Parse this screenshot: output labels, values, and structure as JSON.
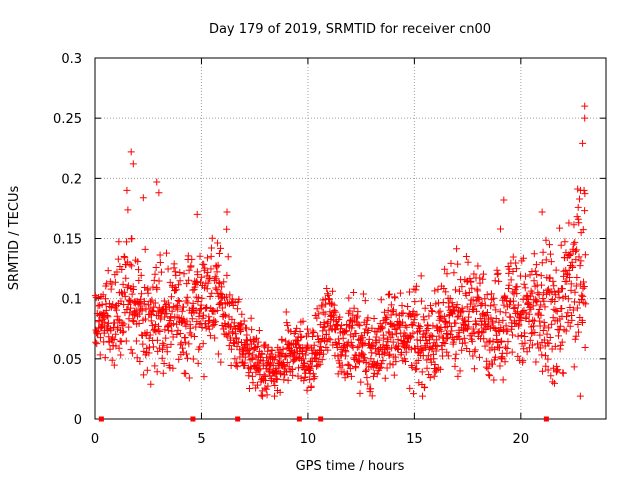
{
  "chart_data": {
    "type": "scatter",
    "title": "Day 179 of 2019, SRMTID for receiver cn00",
    "xlabel": "GPS time / hours",
    "ylabel": "SRMTID / TECUs",
    "xlim": [
      0,
      24
    ],
    "ylim": [
      0,
      0.3
    ],
    "x_ticks": [
      0,
      5,
      10,
      15,
      20
    ],
    "y_ticks": [
      0,
      0.05,
      0.1,
      0.15,
      0.2,
      0.25,
      0.3
    ],
    "x_tick_labels": [
      "0",
      "5",
      "10",
      "15",
      "20"
    ],
    "y_tick_labels": [
      "0",
      "0.05",
      "0.1",
      "0.15",
      "0.2",
      "0.25",
      "0.3"
    ],
    "grid": true,
    "marker": "+",
    "color": "#ff0000",
    "gap_markers_x": [
      0.3,
      4.6,
      6.7,
      9.6,
      10.6,
      21.2
    ],
    "outliers": [
      {
        "x": 1.5,
        "y": 0.19
      },
      {
        "x": 1.7,
        "y": 0.222
      },
      {
        "x": 1.8,
        "y": 0.212
      },
      {
        "x": 2.9,
        "y": 0.197
      },
      {
        "x": 3.0,
        "y": 0.188
      },
      {
        "x": 4.8,
        "y": 0.17
      },
      {
        "x": 6.2,
        "y": 0.172
      },
      {
        "x": 19.2,
        "y": 0.182
      },
      {
        "x": 21.0,
        "y": 0.172
      },
      {
        "x": 22.8,
        "y": 0.19
      },
      {
        "x": 22.9,
        "y": 0.229
      },
      {
        "x": 23.0,
        "y": 0.25
      },
      {
        "x": 23.0,
        "y": 0.26
      },
      {
        "x": 22.7,
        "y": 0.166
      }
    ],
    "trend": [
      {
        "x": 0.0,
        "y": 0.08
      },
      {
        "x": 0.5,
        "y": 0.082
      },
      {
        "x": 1.0,
        "y": 0.085
      },
      {
        "x": 1.5,
        "y": 0.095
      },
      {
        "x": 2.0,
        "y": 0.092
      },
      {
        "x": 2.5,
        "y": 0.08
      },
      {
        "x": 3.0,
        "y": 0.085
      },
      {
        "x": 3.5,
        "y": 0.085
      },
      {
        "x": 4.0,
        "y": 0.083
      },
      {
        "x": 4.5,
        "y": 0.09
      },
      {
        "x": 5.0,
        "y": 0.095
      },
      {
        "x": 5.5,
        "y": 0.1
      },
      {
        "x": 6.0,
        "y": 0.1
      },
      {
        "x": 6.5,
        "y": 0.075
      },
      {
        "x": 7.0,
        "y": 0.058
      },
      {
        "x": 7.5,
        "y": 0.048
      },
      {
        "x": 8.0,
        "y": 0.04
      },
      {
        "x": 8.5,
        "y": 0.038
      },
      {
        "x": 9.0,
        "y": 0.05
      },
      {
        "x": 9.5,
        "y": 0.06
      },
      {
        "x": 10.0,
        "y": 0.048
      },
      {
        "x": 10.5,
        "y": 0.058
      },
      {
        "x": 11.0,
        "y": 0.085
      },
      {
        "x": 11.5,
        "y": 0.065
      },
      {
        "x": 12.0,
        "y": 0.065
      },
      {
        "x": 12.5,
        "y": 0.06
      },
      {
        "x": 13.0,
        "y": 0.055
      },
      {
        "x": 13.5,
        "y": 0.062
      },
      {
        "x": 14.0,
        "y": 0.07
      },
      {
        "x": 14.5,
        "y": 0.072
      },
      {
        "x": 15.0,
        "y": 0.065
      },
      {
        "x": 15.5,
        "y": 0.062
      },
      {
        "x": 16.0,
        "y": 0.068
      },
      {
        "x": 16.5,
        "y": 0.075
      },
      {
        "x": 17.0,
        "y": 0.085
      },
      {
        "x": 17.5,
        "y": 0.09
      },
      {
        "x": 18.0,
        "y": 0.085
      },
      {
        "x": 18.5,
        "y": 0.08
      },
      {
        "x": 19.0,
        "y": 0.078
      },
      {
        "x": 19.5,
        "y": 0.095
      },
      {
        "x": 20.0,
        "y": 0.085
      },
      {
        "x": 20.5,
        "y": 0.085
      },
      {
        "x": 21.0,
        "y": 0.085
      },
      {
        "x": 21.5,
        "y": 0.08
      },
      {
        "x": 22.0,
        "y": 0.1
      },
      {
        "x": 22.5,
        "y": 0.11
      },
      {
        "x": 23.0,
        "y": 0.13
      }
    ],
    "spread": [
      {
        "x": 0,
        "s": 0.015
      },
      {
        "x": 1.5,
        "s": 0.025
      },
      {
        "x": 3,
        "s": 0.022
      },
      {
        "x": 6,
        "s": 0.02
      },
      {
        "x": 7.5,
        "s": 0.011
      },
      {
        "x": 9,
        "s": 0.012
      },
      {
        "x": 11,
        "s": 0.015
      },
      {
        "x": 16,
        "s": 0.018
      },
      {
        "x": 19.5,
        "s": 0.022
      },
      {
        "x": 23,
        "s": 0.035
      }
    ]
  }
}
